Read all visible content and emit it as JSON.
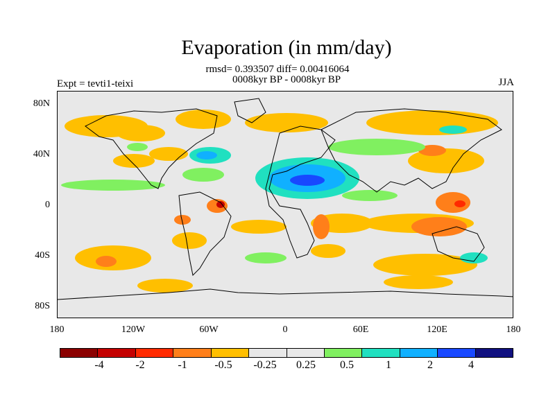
{
  "title": "Evaporation (in mm/day)",
  "stats_line1": "rmsd= 0.393507 diff= 0.00416064",
  "stats_line2": "0008kyr BP - 0008kyr BP",
  "expt_label": "Expt = tevti1-teixi",
  "season_label": "JJA",
  "y_axis": {
    "ticks": [
      "80N",
      "40N",
      "0",
      "40S",
      "80S"
    ]
  },
  "x_axis": {
    "ticks": [
      "180",
      "120W",
      "60W",
      "0",
      "60E",
      "120E",
      "180"
    ]
  },
  "colorbar": {
    "colors": [
      "#8b0000",
      "#c40000",
      "#ff2a00",
      "#ff7f1a",
      "#ffbf00",
      "#e8e8e8",
      "#e8e8e8",
      "#80f060",
      "#20e0c0",
      "#10b0ff",
      "#1848ff",
      "#101080"
    ],
    "labels": [
      "-4",
      "-2",
      "-1",
      "-0.5",
      "-0.25",
      "0.25",
      "0.5",
      "1",
      "2",
      "4"
    ]
  },
  "map_colors": {
    "land_bg": "#e8e8e8",
    "coast": "#000000"
  }
}
